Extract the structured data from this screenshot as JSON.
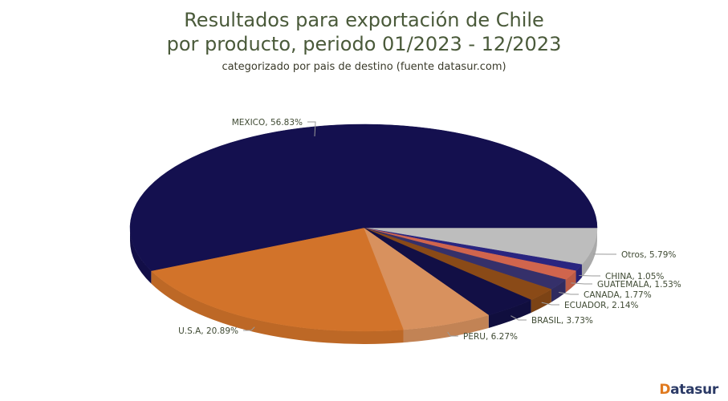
{
  "title": {
    "line1": "Resultados para exportación de Chile",
    "line2": "por producto, periodo 01/2023 - 12/2023",
    "subtitle": "categorizado por pais de destino (fuente datasur.com)"
  },
  "logo": {
    "first": "D",
    "rest": "atasur"
  },
  "chart_data": {
    "type": "pie",
    "title": "Resultados para exportación de Chile por producto, periodo 01/2023 - 12/2023",
    "subtitle": "categorizado por pais de destino (fuente datasur.com)",
    "style": "3d",
    "categories": [
      "Otros",
      "CHINA",
      "GUATEMALA",
      "CANADA",
      "ECUADOR",
      "BRASIL",
      "PERU",
      "U.S.A",
      "MEXICO"
    ],
    "values": [
      5.79,
      1.05,
      1.53,
      1.77,
      2.14,
      3.73,
      6.27,
      20.89,
      56.83
    ],
    "labels": [
      "Otros, 5.79%",
      "CHINA, 1.05%",
      "GUATEMALA, 1.53%",
      "CANADA, 1.77%",
      "ECUADOR, 2.14%",
      "BRASIL, 3.73%",
      "PERU, 6.27%",
      "U.S.A, 20.89%",
      "MEXICO, 56.83%"
    ],
    "colors": [
      "#bdbdbd",
      "#2a2580",
      "#d0654d",
      "#35306a",
      "#8a4a17",
      "#120f45",
      "#d8915e",
      "#d2732a",
      "#14104f"
    ],
    "unit": "%",
    "legend": "none (data labels with leader lines)"
  }
}
